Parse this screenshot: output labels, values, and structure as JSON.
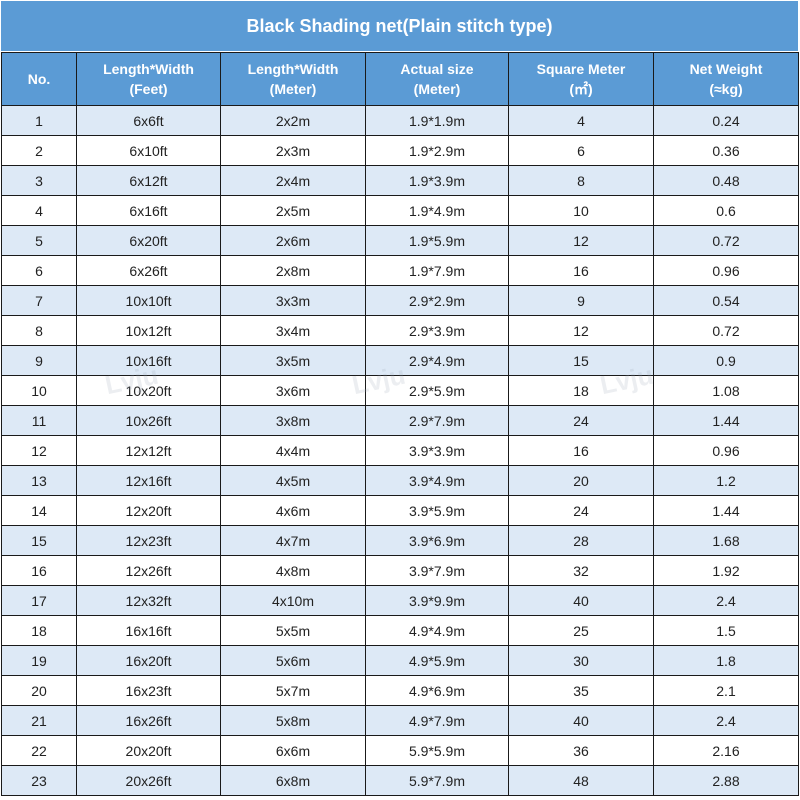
{
  "header": {
    "title": "Black Shading net(Plain stitch type)"
  },
  "watermark": "Lvju",
  "table": {
    "columns": [
      [
        "No."
      ],
      [
        "Length*Width",
        "(Feet)"
      ],
      [
        "Length*Width",
        "(Meter)"
      ],
      [
        "Actual size",
        "(Meter)"
      ],
      [
        "Square Meter",
        "(㎡)"
      ],
      [
        "Net Weight",
        "(≈kg)"
      ]
    ],
    "rows": [
      [
        1,
        "6x6ft",
        "2x2m",
        "1.9*1.9m",
        4,
        0.24
      ],
      [
        2,
        "6x10ft",
        "2x3m",
        "1.9*2.9m",
        6,
        0.36
      ],
      [
        3,
        "6x12ft",
        "2x4m",
        "1.9*3.9m",
        8,
        0.48
      ],
      [
        4,
        "6x16ft",
        "2x5m",
        "1.9*4.9m",
        10,
        0.6
      ],
      [
        5,
        "6x20ft",
        "2x6m",
        "1.9*5.9m",
        12,
        0.72
      ],
      [
        6,
        "6x26ft",
        "2x8m",
        "1.9*7.9m",
        16,
        0.96
      ],
      [
        7,
        "10x10ft",
        "3x3m",
        "2.9*2.9m",
        9,
        0.54
      ],
      [
        8,
        "10x12ft",
        "3x4m",
        "2.9*3.9m",
        12,
        0.72
      ],
      [
        9,
        "10x16ft",
        "3x5m",
        "2.9*4.9m",
        15,
        0.9
      ],
      [
        10,
        "10x20ft",
        "3x6m",
        "2.9*5.9m",
        18,
        1.08
      ],
      [
        11,
        "10x26ft",
        "3x8m",
        "2.9*7.9m",
        24,
        1.44
      ],
      [
        12,
        "12x12ft",
        "4x4m",
        "3.9*3.9m",
        16,
        0.96
      ],
      [
        13,
        "12x16ft",
        "4x5m",
        "3.9*4.9m",
        20,
        1.2
      ],
      [
        14,
        "12x20ft",
        "4x6m",
        "3.9*5.9m",
        24,
        1.44
      ],
      [
        15,
        "12x23ft",
        "4x7m",
        "3.9*6.9m",
        28,
        1.68
      ],
      [
        16,
        "12x26ft",
        "4x8m",
        "3.9*7.9m",
        32,
        1.92
      ],
      [
        17,
        "12x32ft",
        "4x10m",
        "3.9*9.9m",
        40,
        2.4
      ],
      [
        18,
        "16x16ft",
        "5x5m",
        "4.9*4.9m",
        25,
        1.5
      ],
      [
        19,
        "16x20ft",
        "5x6m",
        "4.9*5.9m",
        30,
        1.8
      ],
      [
        20,
        "16x23ft",
        "5x7m",
        "4.9*6.9m",
        35,
        2.1
      ],
      [
        21,
        "16x26ft",
        "5x8m",
        "4.9*7.9m",
        40,
        2.4
      ],
      [
        22,
        "20x20ft",
        "6x6m",
        "5.9*5.9m",
        36,
        2.16
      ],
      [
        23,
        "20x26ft",
        "6x8m",
        "5.9*7.9m",
        48,
        2.88
      ]
    ]
  }
}
